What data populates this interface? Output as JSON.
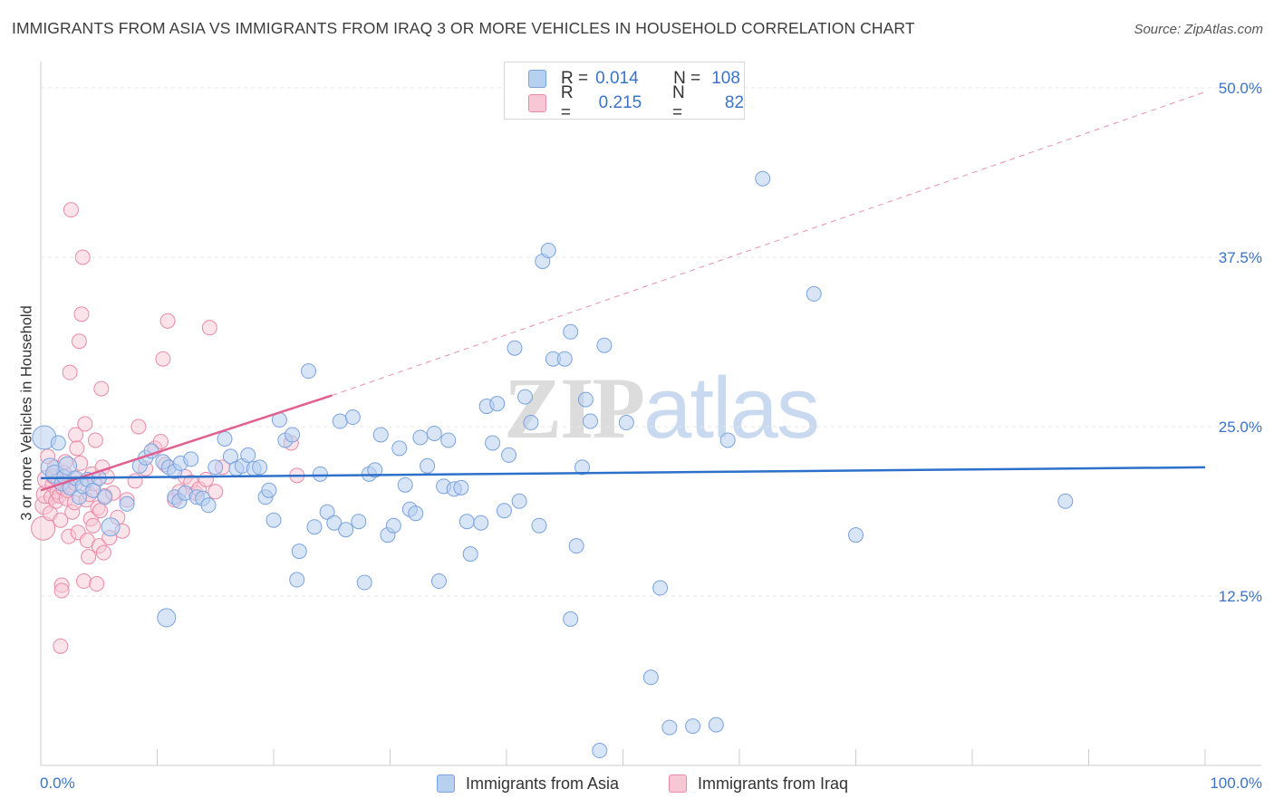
{
  "header": {
    "title": "IMMIGRANTS FROM ASIA VS IMMIGRANTS FROM IRAQ 3 OR MORE VEHICLES IN HOUSEHOLD CORRELATION CHART",
    "source": "Source: ZipAtlas.com"
  },
  "legend": {
    "asia": {
      "r_label": "R =",
      "r_value": "0.014",
      "n_label": "N =",
      "n_value": "108"
    },
    "iraq": {
      "r_label": "R =",
      "r_value": "0.215",
      "n_label": "N =",
      "n_value": "82"
    }
  },
  "bottom_legend": {
    "asia": "Immigrants from Asia",
    "iraq": "Immigrants from Iraq"
  },
  "watermark": {
    "zip": "ZIP",
    "atlas": "atlas"
  },
  "colors": {
    "asia_fill": "#b8d0f0",
    "asia_stroke": "#7aa3dd",
    "asia_line": "#2d70c9",
    "iraq_fill": "#f8c7d6",
    "iraq_stroke": "#e98aa9",
    "iraq_line": "#e0608f",
    "tick_label": "#3b73c8",
    "grid": "#e6e6e6"
  },
  "chart_data": {
    "type": "scatter",
    "title": "IMMIGRANTS FROM ASIA VS IMMIGRANTS FROM IRAQ 3 OR MORE VEHICLES IN HOUSEHOLD CORRELATION CHART",
    "xlabel": "",
    "ylabel": "3 or more Vehicles in Household",
    "xlim": [
      0,
      100
    ],
    "ylim": [
      0,
      50
    ],
    "x_tick_labels": [
      {
        "value": 0,
        "label": "0.0%"
      },
      {
        "value": 100,
        "label": "100.0%"
      }
    ],
    "y_tick_labels": [
      {
        "value": 12.5,
        "label": "12.5%"
      },
      {
        "value": 25.0,
        "label": "25.0%"
      },
      {
        "value": 37.5,
        "label": "37.5%"
      },
      {
        "value": 50.0,
        "label": "50.0%"
      }
    ],
    "series": [
      {
        "name": "Immigrants from Asia",
        "r": 0.014,
        "n": 108,
        "trend": {
          "x0": 0,
          "y0": 21.2,
          "x1": 100,
          "y1": 22.0
        },
        "points": [
          [
            0.3,
            24.2,
            3
          ],
          [
            0.8,
            22.0,
            2
          ],
          [
            1.2,
            21.5,
            2
          ],
          [
            1.5,
            23.8,
            1
          ],
          [
            1.8,
            20.8,
            1
          ],
          [
            2.0,
            21.3,
            1
          ],
          [
            2.3,
            22.1,
            2
          ],
          [
            2.5,
            20.5,
            1
          ],
          [
            3.0,
            21.2,
            1
          ],
          [
            3.3,
            19.8,
            1
          ],
          [
            3.6,
            20.6,
            1
          ],
          [
            4.0,
            21.1,
            1
          ],
          [
            4.5,
            20.3,
            1
          ],
          [
            5.0,
            21.2,
            1
          ],
          [
            5.5,
            19.8,
            1
          ],
          [
            6.0,
            17.6,
            2
          ],
          [
            7.4,
            19.3,
            1
          ],
          [
            8.5,
            22.1,
            1
          ],
          [
            9.0,
            22.7,
            1
          ],
          [
            9.5,
            23.2,
            1
          ],
          [
            10.5,
            22.4,
            1
          ],
          [
            11.0,
            22.0,
            1
          ],
          [
            11.5,
            21.7,
            1
          ],
          [
            12.0,
            22.3,
            1
          ],
          [
            10.8,
            10.9,
            2
          ],
          [
            11.5,
            19.8,
            1
          ],
          [
            11.9,
            19.5,
            1
          ],
          [
            12.4,
            20.1,
            1
          ],
          [
            12.9,
            22.6,
            1
          ],
          [
            13.4,
            19.8,
            1
          ],
          [
            13.9,
            19.7,
            1
          ],
          [
            14.4,
            19.2,
            1
          ],
          [
            15.0,
            22.0,
            1
          ],
          [
            15.8,
            24.1,
            1
          ],
          [
            16.3,
            22.8,
            1
          ],
          [
            16.8,
            21.9,
            1
          ],
          [
            17.3,
            22.1,
            1
          ],
          [
            17.8,
            22.9,
            1
          ],
          [
            18.3,
            21.9,
            1
          ],
          [
            18.8,
            22.0,
            1
          ],
          [
            19.3,
            19.8,
            1
          ],
          [
            19.6,
            20.3,
            1
          ],
          [
            20.0,
            18.1,
            1
          ],
          [
            20.5,
            25.5,
            1
          ],
          [
            21.0,
            24.0,
            1
          ],
          [
            21.6,
            24.4,
            1
          ],
          [
            22.2,
            15.8,
            1
          ],
          [
            22.0,
            13.7,
            1
          ],
          [
            23.0,
            29.1,
            1
          ],
          [
            23.5,
            17.6,
            1
          ],
          [
            24.0,
            21.5,
            1
          ],
          [
            24.6,
            18.7,
            1
          ],
          [
            25.2,
            17.9,
            1
          ],
          [
            25.7,
            25.4,
            1
          ],
          [
            26.2,
            17.4,
            1
          ],
          [
            26.8,
            25.7,
            1
          ],
          [
            27.3,
            18.0,
            1
          ],
          [
            27.8,
            13.5,
            1
          ],
          [
            28.2,
            21.5,
            1
          ],
          [
            28.7,
            21.8,
            1
          ],
          [
            29.2,
            24.4,
            1
          ],
          [
            29.8,
            17.0,
            1
          ],
          [
            30.3,
            17.7,
            1
          ],
          [
            30.8,
            23.4,
            1
          ],
          [
            31.3,
            20.7,
            1
          ],
          [
            31.7,
            18.9,
            1
          ],
          [
            32.2,
            18.6,
            1
          ],
          [
            32.6,
            24.2,
            1
          ],
          [
            33.2,
            22.1,
            1
          ],
          [
            33.8,
            24.5,
            1
          ],
          [
            34.2,
            13.6,
            1
          ],
          [
            34.6,
            20.6,
            1
          ],
          [
            35.0,
            24.0,
            1
          ],
          [
            35.5,
            20.4,
            1
          ],
          [
            36.1,
            20.5,
            1
          ],
          [
            36.6,
            18.0,
            1
          ],
          [
            36.9,
            15.6,
            1
          ],
          [
            37.8,
            17.9,
            1
          ],
          [
            38.3,
            26.5,
            1
          ],
          [
            38.8,
            23.8,
            1
          ],
          [
            39.2,
            26.7,
            1
          ],
          [
            39.8,
            18.8,
            1
          ],
          [
            40.2,
            22.9,
            1
          ],
          [
            40.7,
            30.8,
            1
          ],
          [
            41.1,
            19.5,
            1
          ],
          [
            41.6,
            27.2,
            1
          ],
          [
            42.1,
            25.3,
            1
          ],
          [
            42.8,
            17.7,
            1
          ],
          [
            43.1,
            37.2,
            1
          ],
          [
            43.6,
            38.0,
            1
          ],
          [
            44.0,
            30.0,
            1
          ],
          [
            45.0,
            30.0,
            1
          ],
          [
            45.5,
            32.0,
            1
          ],
          [
            46.0,
            16.2,
            1
          ],
          [
            46.5,
            22.0,
            1
          ],
          [
            46.8,
            27.0,
            1
          ],
          [
            47.2,
            25.4,
            1
          ],
          [
            45.5,
            10.8,
            1
          ],
          [
            48.4,
            31.0,
            1
          ],
          [
            48.0,
            1.1,
            1
          ],
          [
            50.3,
            25.3,
            1
          ],
          [
            52.4,
            6.5,
            1
          ],
          [
            53.2,
            13.1,
            1
          ],
          [
            54.0,
            2.8,
            1
          ],
          [
            56.0,
            2.9,
            1
          ],
          [
            58.0,
            3.0,
            1
          ],
          [
            59.0,
            24.0,
            1
          ],
          [
            62.0,
            43.3,
            1
          ],
          [
            66.4,
            34.8,
            1
          ],
          [
            70.0,
            17.0,
            1
          ],
          [
            88.0,
            19.5,
            1
          ]
        ]
      },
      {
        "name": "Immigrants from Iraq",
        "r": 0.215,
        "n": 82,
        "trend_solid": {
          "x0": 0,
          "y0": 20.3,
          "x1": 25,
          "y1": 27.3
        },
        "trend_dashed": {
          "x0": 25,
          "y0": 27.3,
          "x1": 100,
          "y1": 49.7
        },
        "points": [
          [
            0.2,
            17.5,
            3
          ],
          [
            0.3,
            19.2,
            2
          ],
          [
            0.4,
            20.0,
            2
          ],
          [
            0.5,
            21.1,
            2
          ],
          [
            0.6,
            22.8,
            1
          ],
          [
            0.8,
            18.6,
            1
          ],
          [
            0.9,
            19.8,
            1
          ],
          [
            1.0,
            20.7,
            1
          ],
          [
            1.1,
            21.3,
            1
          ],
          [
            1.2,
            22.0,
            1
          ],
          [
            1.3,
            19.5,
            1
          ],
          [
            1.4,
            20.2,
            1
          ],
          [
            1.5,
            21.0,
            1
          ],
          [
            1.6,
            19.9,
            1
          ],
          [
            1.7,
            18.1,
            1
          ],
          [
            1.8,
            13.3,
            1
          ],
          [
            1.8,
            12.9,
            1
          ],
          [
            1.7,
            8.8,
            1
          ],
          [
            1.9,
            20.5,
            1
          ],
          [
            2.0,
            21.6,
            1
          ],
          [
            2.1,
            22.4,
            1
          ],
          [
            2.2,
            19.7,
            1
          ],
          [
            2.3,
            20.3,
            1
          ],
          [
            2.4,
            16.9,
            1
          ],
          [
            2.5,
            29.0,
            1
          ],
          [
            2.6,
            41.0,
            1
          ],
          [
            2.7,
            18.7,
            1
          ],
          [
            2.8,
            21.2,
            1
          ],
          [
            2.9,
            19.4,
            1
          ],
          [
            3.0,
            20.8,
            1
          ],
          [
            3.0,
            24.4,
            1
          ],
          [
            3.1,
            23.4,
            1
          ],
          [
            3.2,
            17.2,
            1
          ],
          [
            3.3,
            31.3,
            1
          ],
          [
            3.4,
            22.3,
            1
          ],
          [
            3.5,
            33.3,
            1
          ],
          [
            3.6,
            37.5,
            1
          ],
          [
            3.7,
            13.6,
            1
          ],
          [
            3.8,
            25.2,
            1
          ],
          [
            3.9,
            19.6,
            1
          ],
          [
            4.0,
            16.6,
            1
          ],
          [
            4.1,
            15.4,
            1
          ],
          [
            4.2,
            20.0,
            1
          ],
          [
            4.3,
            18.2,
            1
          ],
          [
            4.4,
            21.5,
            1
          ],
          [
            4.5,
            17.7,
            1
          ],
          [
            4.6,
            20.8,
            1
          ],
          [
            4.7,
            24.0,
            1
          ],
          [
            4.8,
            13.4,
            1
          ],
          [
            4.9,
            19.0,
            1
          ],
          [
            5.0,
            16.2,
            1
          ],
          [
            5.1,
            18.8,
            1
          ],
          [
            5.2,
            27.8,
            1
          ],
          [
            5.3,
            22.0,
            1
          ],
          [
            5.4,
            15.7,
            1
          ],
          [
            5.5,
            19.9,
            1
          ],
          [
            5.7,
            21.3,
            1
          ],
          [
            5.9,
            16.8,
            1
          ],
          [
            6.2,
            20.1,
            1
          ],
          [
            6.6,
            18.3,
            1
          ],
          [
            7.0,
            17.3,
            1
          ],
          [
            7.4,
            19.6,
            1
          ],
          [
            8.1,
            21.0,
            1
          ],
          [
            8.4,
            25.0,
            1
          ],
          [
            9.0,
            21.9,
            1
          ],
          [
            9.8,
            23.4,
            1
          ],
          [
            10.3,
            23.9,
            1
          ],
          [
            10.5,
            30.0,
            1
          ],
          [
            10.7,
            22.2,
            1
          ],
          [
            10.9,
            32.8,
            1
          ],
          [
            11.5,
            19.6,
            1
          ],
          [
            11.9,
            20.2,
            1
          ],
          [
            12.4,
            21.3,
            1
          ],
          [
            12.9,
            20.9,
            1
          ],
          [
            13.3,
            20.1,
            1
          ],
          [
            13.6,
            20.4,
            1
          ],
          [
            14.2,
            21.1,
            1
          ],
          [
            14.5,
            32.3,
            1
          ],
          [
            15.0,
            20.2,
            1
          ],
          [
            15.6,
            22.0,
            1
          ],
          [
            21.5,
            23.8,
            1
          ],
          [
            22.0,
            21.4,
            1
          ]
        ]
      }
    ]
  }
}
